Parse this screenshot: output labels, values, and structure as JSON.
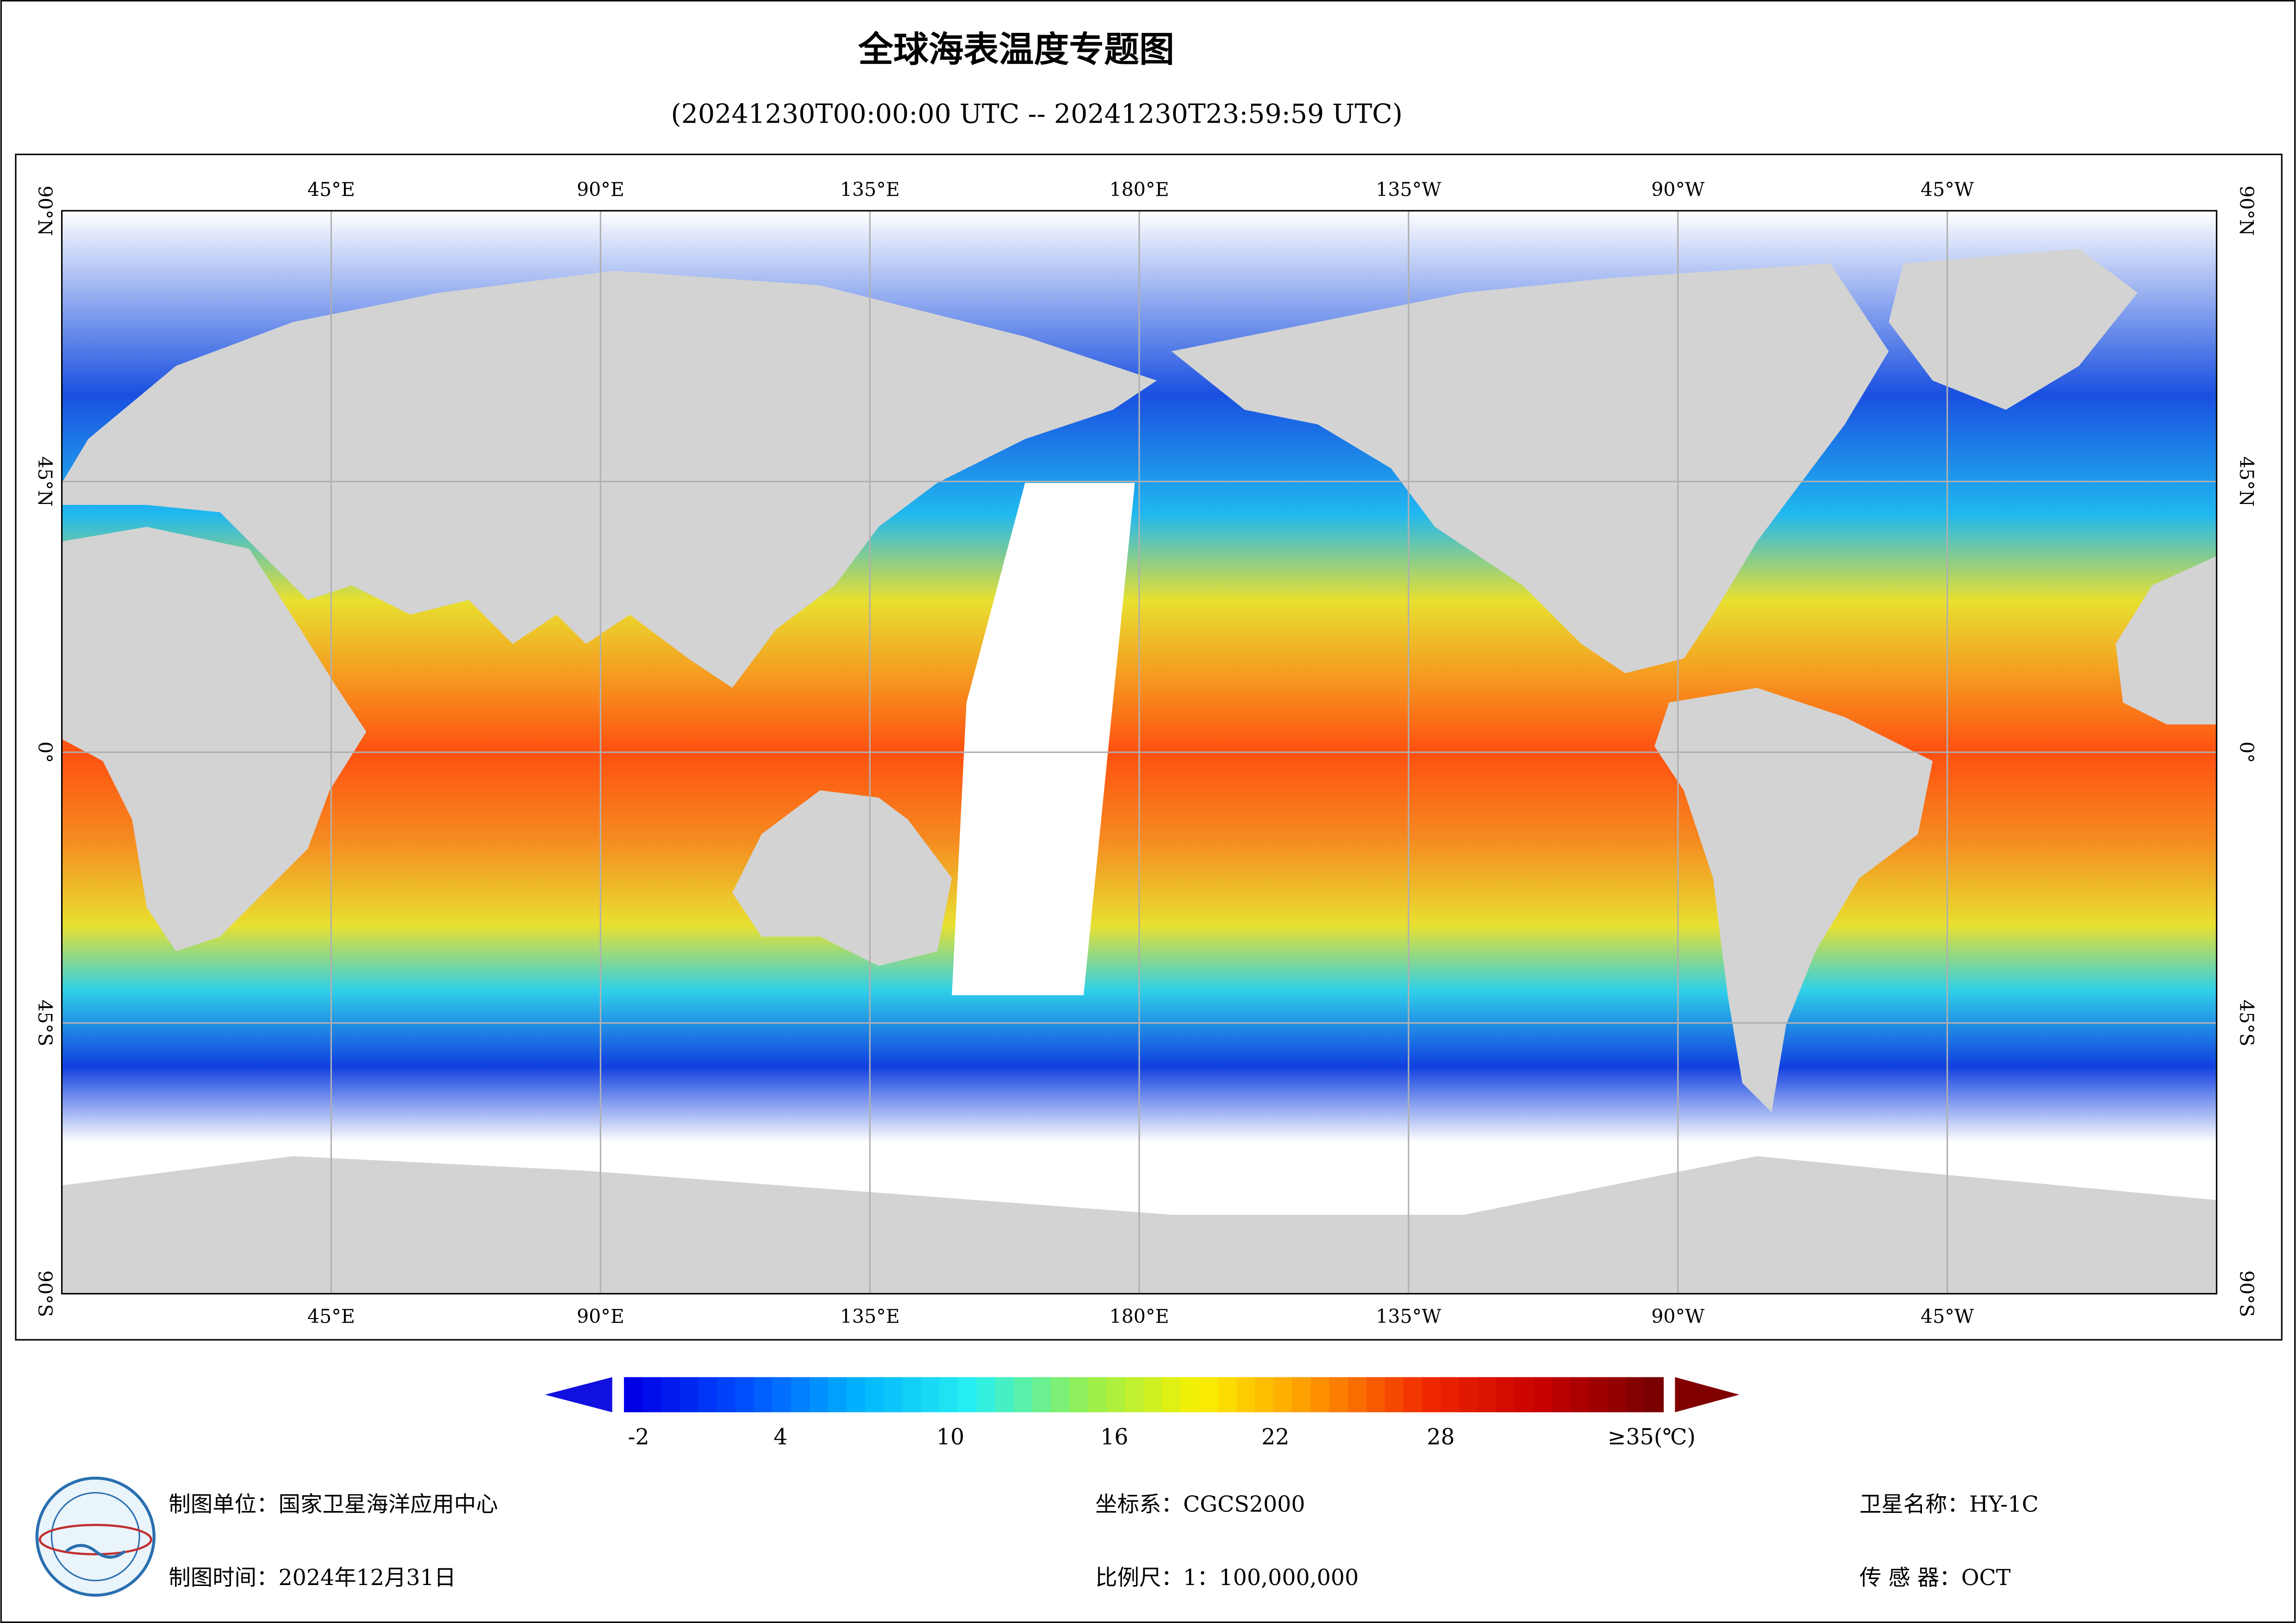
{
  "header": {
    "title": "全球海表温度专题图",
    "subtitle": "(20241230T00:00:00 UTC -- 20241230T23:59:59 UTC)"
  },
  "map": {
    "longitude_labels": [
      "45°E",
      "90°E",
      "135°E",
      "180°E",
      "135°W",
      "90°W",
      "45°W"
    ],
    "latitude_labels": [
      "90°N",
      "45°N",
      "0°",
      "45°S",
      "90°S"
    ]
  },
  "legend": {
    "labels": [
      "-2",
      "4",
      "10",
      "16",
      "22",
      "28",
      "≥35(℃)"
    ]
  },
  "footer": {
    "producer": "制图单位：国家卫星海洋应用中心",
    "date": "制图时间：2024年12月31日",
    "crs": "坐标系：CGCS2000",
    "scale": "比例尺：1：100,000,000",
    "satellite": "卫星名称：HY-1C",
    "sensor": "传 感 器：OCT"
  }
}
